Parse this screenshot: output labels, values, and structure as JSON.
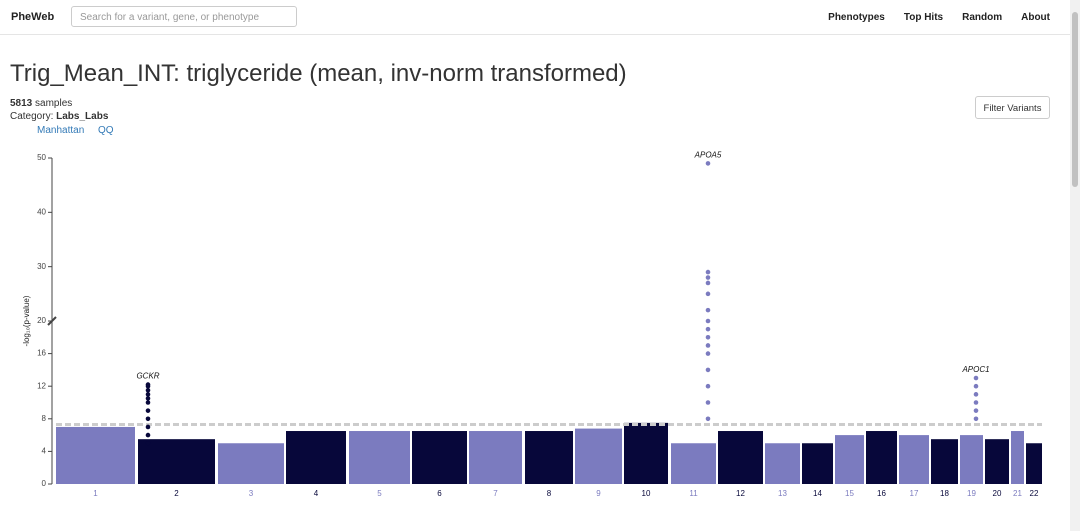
{
  "nav": {
    "brand": "PheWeb",
    "search_placeholder": "Search for a variant, gene, or phenotype",
    "links": [
      "Phenotypes",
      "Top Hits",
      "Random",
      "About"
    ]
  },
  "header": {
    "title": "Trig_Mean_INT: triglyceride (mean, inv-norm transformed)",
    "samples": 5813,
    "samples_label": "samples",
    "category_label": "Category:",
    "category": "Labs_Labs",
    "tabs": [
      "Manhattan",
      "QQ"
    ],
    "button": "Filter Variants"
  },
  "chart_data": {
    "type": "manhattan",
    "y_label": "-log₁₀(p-value)",
    "categories": [
      "1",
      "2",
      "3",
      "4",
      "5",
      "6",
      "7",
      "8",
      "9",
      "10",
      "11",
      "12",
      "13",
      "14",
      "15",
      "16",
      "17",
      "18",
      "19",
      "20",
      "21",
      "22"
    ],
    "values": [
      7,
      5.5,
      5,
      6.5,
      6.5,
      6.5,
      6.5,
      6.5,
      6.8,
      7.5,
      5,
      6.5,
      5,
      5,
      6,
      6.5,
      6,
      5.5,
      6,
      5.5,
      6.5,
      5
    ],
    "colors": [
      "#7b7bbf",
      "#07073a"
    ],
    "peaks": [
      {
        "name": "GCKR",
        "category": "2",
        "values": [
          5,
          6,
          7,
          8,
          9,
          10,
          10.5,
          11,
          11.5,
          12,
          12.2
        ]
      },
      {
        "name": "APOA5",
        "category": "11",
        "values": [
          8,
          10,
          12,
          14,
          16,
          17,
          18,
          19,
          20,
          22,
          25,
          27,
          28,
          29,
          49
        ]
      },
      {
        "name": "APOC1",
        "category": "19",
        "values": [
          8,
          9,
          10,
          11,
          12,
          13
        ]
      }
    ],
    "ylim": [
      0,
      50
    ],
    "yticks": [
      0,
      4,
      8,
      12,
      16,
      20,
      30,
      40,
      50
    ],
    "y_break": 20,
    "threshold": 7.3
  }
}
